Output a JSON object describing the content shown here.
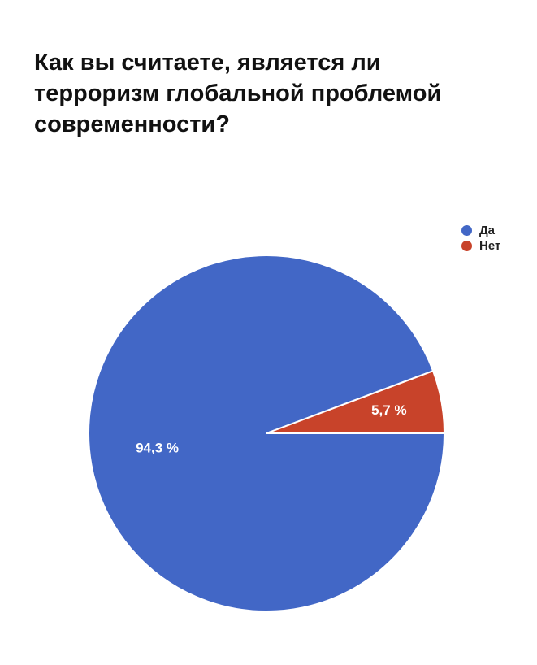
{
  "title_lines": [
    "Как вы считаете, является ли",
    "терроризм глобальной проблемой",
    "современности?"
  ],
  "chart_data": {
    "type": "pie",
    "title": "Как вы считаете, является ли терроризм глобальной проблемой современности?",
    "categories": [
      "Да",
      "Нет"
    ],
    "values": [
      94.3,
      5.7
    ],
    "labels": [
      "94,3 %",
      "5,7 %"
    ],
    "colors": [
      "#4267c6",
      "#c8432a"
    ],
    "legend_position": "top-right"
  }
}
